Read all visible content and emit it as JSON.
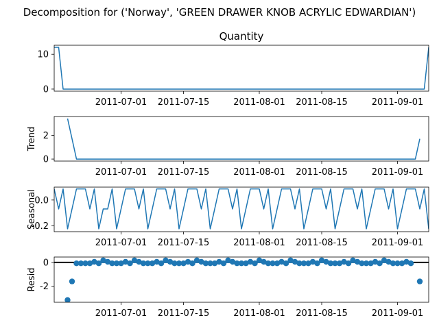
{
  "chart_data": {
    "type": "line",
    "title": "Decomposition for ('Norway', 'GREEN DRAWER KNOB ACRYLIC EDWARDIAN')",
    "x_start": "2011-06-16",
    "x_end": "2011-09-08",
    "x_ticks": [
      "2011-07-01",
      "2011-07-15",
      "2011-08-01",
      "2011-08-15",
      "2011-09-01"
    ],
    "panels": [
      {
        "name": "observed",
        "title": "Quantity",
        "ylabel": "",
        "kind": "line",
        "ylim": [
          -0.6,
          12.6
        ],
        "yticks": [
          0,
          10
        ],
        "points": [
          [
            "2011-06-16",
            12
          ],
          [
            "2011-06-17",
            12
          ],
          [
            "2011-06-18",
            0
          ],
          [
            "2011-09-07",
            0
          ],
          [
            "2011-09-08",
            12
          ]
        ]
      },
      {
        "name": "trend",
        "title": "",
        "ylabel": "Trend",
        "kind": "line",
        "ylim": [
          -0.17,
          3.6
        ],
        "yticks": [
          0,
          2
        ],
        "points": [
          [
            "2011-06-19",
            3.43
          ],
          [
            "2011-06-21",
            0
          ],
          [
            "2011-09-05",
            0
          ],
          [
            "2011-09-06",
            1.71
          ]
        ]
      },
      {
        "name": "seasonal",
        "title": "",
        "ylabel": "Seasonal",
        "kind": "line",
        "ylim": [
          -0.245,
          0.1
        ],
        "yticks": [
          0.0,
          -0.2
        ],
        "pattern_start": "2011-06-16",
        "pattern": [
          0.086,
          -0.069,
          0.086,
          -0.223,
          -0.069,
          0.086,
          0.086,
          0.086,
          -0.069,
          0.086,
          -0.223,
          -0.069
        ],
        "pattern_note": "",
        "period": [
          -0.069,
          0.086,
          -0.223,
          -0.069,
          0.086,
          0.086,
          0.086
        ]
      },
      {
        "name": "resid",
        "title": "",
        "ylabel": "Resid",
        "kind": "scatter",
        "ylim": [
          -3.35,
          0.45
        ],
        "yticks": [
          0,
          -2
        ],
        "zero_line": true,
        "edge_points": [
          [
            "2011-06-19",
            -3.16
          ],
          [
            "2011-06-20",
            -1.6
          ],
          [
            "2011-09-06",
            -1.6
          ]
        ],
        "interior_values": [
          -0.08,
          -0.08,
          -0.08,
          -0.08,
          0.05,
          -0.08,
          0.17,
          0.05,
          -0.08,
          -0.08,
          -0.08,
          0.05,
          -0.08,
          0.17,
          0.05,
          -0.08,
          -0.08,
          -0.08,
          0.05,
          -0.08,
          0.17,
          0.05,
          -0.08,
          -0.08,
          -0.08,
          0.05,
          -0.08,
          0.17,
          0.05,
          -0.08,
          -0.08,
          -0.08,
          0.05,
          -0.08,
          0.17,
          0.05,
          -0.08,
          -0.08,
          -0.08,
          0.05,
          -0.08,
          0.17,
          0.05,
          -0.08,
          -0.08,
          -0.08,
          0.05,
          -0.08,
          0.17,
          0.05,
          -0.08,
          -0.08,
          -0.08,
          0.05,
          -0.08,
          0.17,
          0.05,
          -0.08,
          -0.08,
          -0.08,
          0.05,
          -0.08,
          0.17,
          0.05,
          -0.08,
          -0.08,
          -0.08,
          0.05,
          -0.08,
          0.17,
          0.05,
          -0.08,
          -0.08,
          -0.08,
          0.05,
          -0.08
        ]
      }
    ],
    "colors": {
      "series": "#1f77b4",
      "axes": "#000000"
    }
  }
}
